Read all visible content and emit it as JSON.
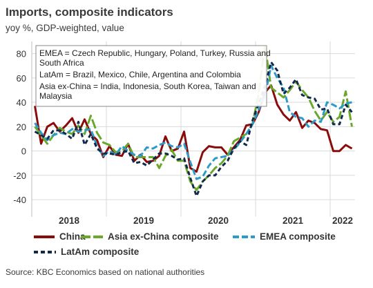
{
  "chart_data": {
    "type": "line",
    "title": "Imports, composite indicators",
    "subtitle": "yoy %, GDP-weighted, value",
    "source": "Source: KBC Economics based on national authorities",
    "annotation": [
      "EMEA = Czech Republic, Hungary, Poland, Turkey, Russia and",
      "South Africa",
      "LatAm = Brazil, Mexico, Chile, Argentina and Colombia",
      "Asia ex-China = India, Indonesia, South Korea, Taiwan and",
      "Malaysia"
    ],
    "x_tick_labels": [
      "2018",
      "2019",
      "2020",
      "2021",
      "2022"
    ],
    "y_ticks": [
      -40,
      -20,
      0,
      20,
      40,
      60,
      80
    ],
    "ylim": [
      -45,
      90
    ],
    "grid": true,
    "legend_position": "bottom",
    "series": [
      {
        "name": "China",
        "color": "#8b0a0a",
        "dash": "solid",
        "values": [
          37,
          6,
          20,
          23,
          16,
          21,
          27,
          15,
          26,
          14,
          9,
          -5,
          4,
          -3,
          -4,
          6,
          -8,
          -3,
          -9,
          -8,
          -4,
          12,
          0,
          2,
          16,
          -14,
          -17,
          -1,
          4,
          3,
          3,
          -3,
          3,
          9,
          21,
          22,
          32,
          48,
          54,
          38,
          30,
          25,
          32,
          19,
          25,
          23,
          18,
          17,
          0,
          0,
          5,
          2
        ]
      },
      {
        "name": "Asia ex-China composite",
        "color": "#6aa82d",
        "dash": "long",
        "values": [
          20,
          13,
          6,
          13,
          19,
          16,
          14,
          21,
          14,
          29,
          15,
          7,
          5,
          -1,
          0,
          6,
          -5,
          -5,
          -5,
          -5,
          -14,
          -4,
          1,
          -8,
          -8,
          -25,
          -32,
          -25,
          -20,
          -14,
          -10,
          -4,
          8,
          11,
          14,
          22,
          47,
          87,
          52,
          48,
          44,
          50,
          57,
          50,
          44,
          33,
          25,
          32,
          24,
          28,
          49,
          20
        ]
      },
      {
        "name": "EMEA composite",
        "color": "#2d9bc8",
        "dash": "medium",
        "values": [
          23,
          15,
          9,
          13,
          15,
          14,
          18,
          16,
          17,
          18,
          4,
          -4,
          0,
          -3,
          4,
          0,
          -3,
          -4,
          3,
          2,
          5,
          7,
          4,
          3,
          6,
          -9,
          -23,
          -21,
          -12,
          -6,
          -5,
          -4,
          1,
          7,
          14,
          22,
          34,
          45,
          70,
          60,
          52,
          32,
          28,
          27,
          20,
          25,
          24,
          40,
          38,
          35,
          39,
          40
        ]
      },
      {
        "name": "LatAm composite",
        "color": "#13294b",
        "dash": "short",
        "values": [
          16,
          13,
          10,
          17,
          17,
          14,
          10,
          24,
          5,
          14,
          2,
          -2,
          -2,
          -3,
          -1,
          0,
          -10,
          -9,
          -12,
          -7,
          -2,
          -2,
          -4,
          -7,
          -6,
          -22,
          -37,
          -25,
          -20,
          -20,
          -13,
          -8,
          2,
          8,
          5,
          25,
          39,
          53,
          73,
          66,
          47,
          52,
          59,
          46,
          44,
          43,
          34,
          35,
          22,
          22,
          38,
          32
        ]
      }
    ]
  }
}
